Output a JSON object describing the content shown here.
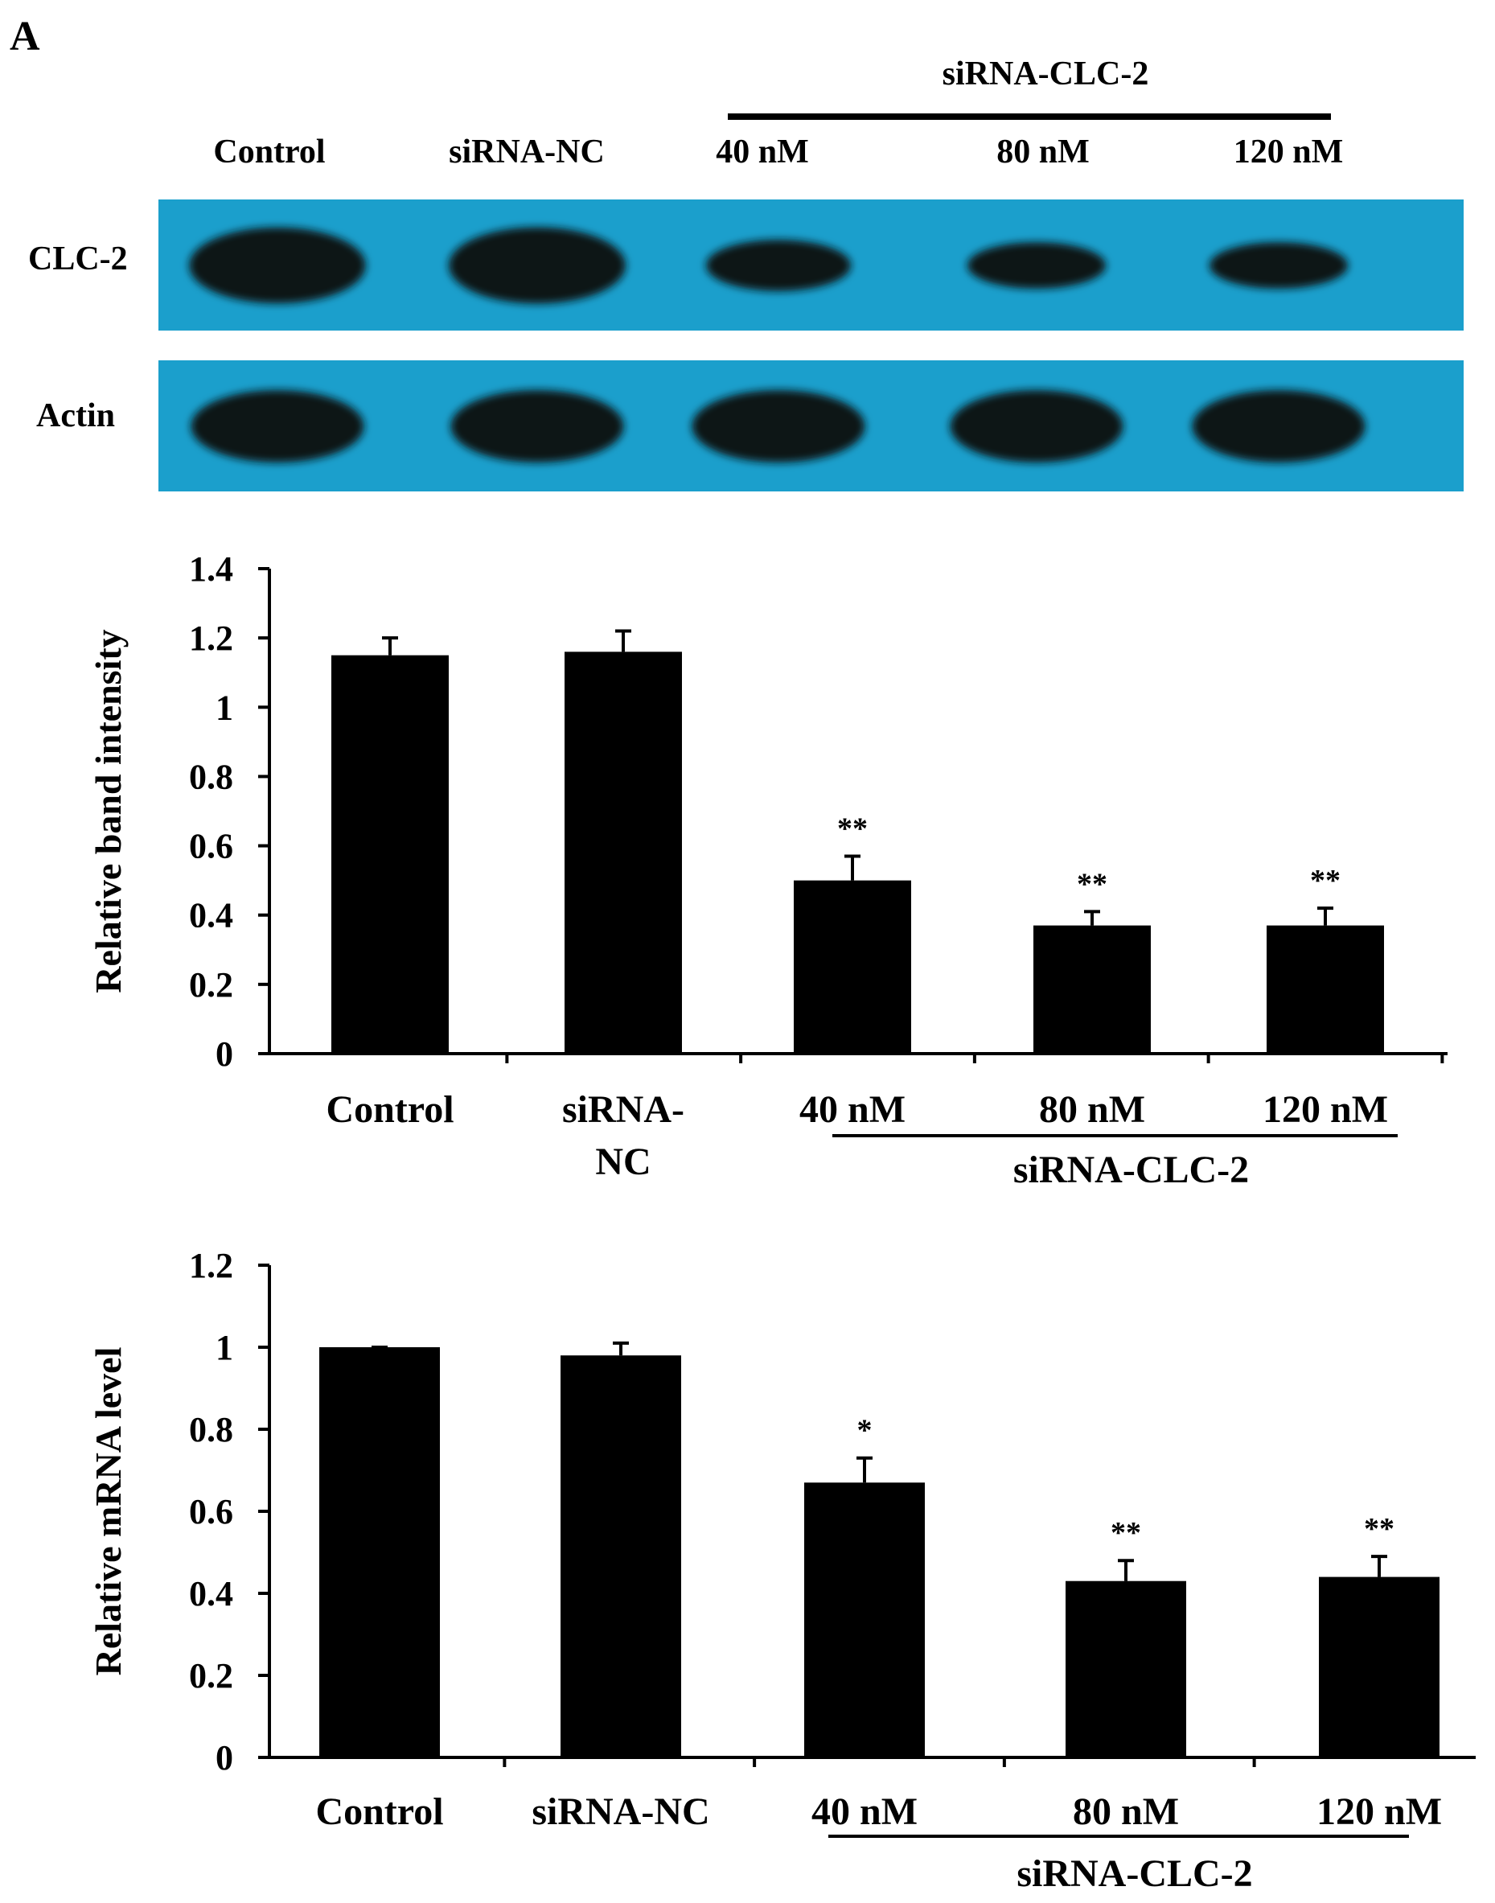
{
  "panel_label": "A",
  "blot": {
    "group_label": "siRNA-CLC-2",
    "lanes": [
      "Control",
      "siRNA-NC",
      "40 nM",
      "80 nM",
      "120 nM"
    ],
    "rows": [
      {
        "label": "CLC-2",
        "intensity": [
          1.15,
          1.16,
          0.5,
          0.37,
          0.37
        ]
      },
      {
        "label": "Actin",
        "intensity": [
          1.0,
          1.0,
          1.0,
          1.0,
          1.0
        ]
      }
    ],
    "membrane_color": "#1b9fcc",
    "band_color": "#0c1216"
  },
  "chart_data": [
    {
      "type": "bar",
      "categories": [
        "Control",
        "siRNA-NC",
        "40 nM",
        "80 nM",
        "120 nM"
      ],
      "category_labels": [
        [
          "Control"
        ],
        [
          "siRNA-",
          "NC"
        ],
        [
          "40 nM"
        ],
        [
          "80 nM"
        ],
        [
          "120 nM"
        ]
      ],
      "values": [
        1.15,
        1.16,
        0.5,
        0.37,
        0.37
      ],
      "errors": [
        0.05,
        0.06,
        0.07,
        0.04,
        0.05
      ],
      "significance": [
        "",
        "",
        "**",
        "**",
        "**"
      ],
      "ylabel": "Relative band intensity",
      "ylim": [
        0,
        1.4
      ],
      "yticks": [
        "0",
        "0.2",
        "0.4",
        "0.6",
        "0.8",
        "1",
        "1.2",
        "1.4"
      ],
      "group_label": "siRNA-CLC-2",
      "bar_color": "#000000",
      "grid": false
    },
    {
      "type": "bar",
      "categories": [
        "Control",
        "siRNA-NC",
        "40 nM",
        "80 nM",
        "120 nM"
      ],
      "category_labels": [
        [
          "Control"
        ],
        [
          "siRNA-NC"
        ],
        [
          "40 nM"
        ],
        [
          "80 nM"
        ],
        [
          "120 nM"
        ]
      ],
      "values": [
        1.0,
        0.98,
        0.67,
        0.43,
        0.44
      ],
      "errors": [
        0.0,
        0.03,
        0.06,
        0.05,
        0.05
      ],
      "significance": [
        "",
        "",
        "*",
        "**",
        "**"
      ],
      "ylabel": "Relative mRNA level",
      "ylim": [
        0,
        1.2
      ],
      "yticks": [
        "0",
        "0.2",
        "0.4",
        "0.6",
        "0.8",
        "1",
        "1.2"
      ],
      "group_label": "siRNA-CLC-2",
      "bar_color": "#000000",
      "grid": false
    }
  ]
}
